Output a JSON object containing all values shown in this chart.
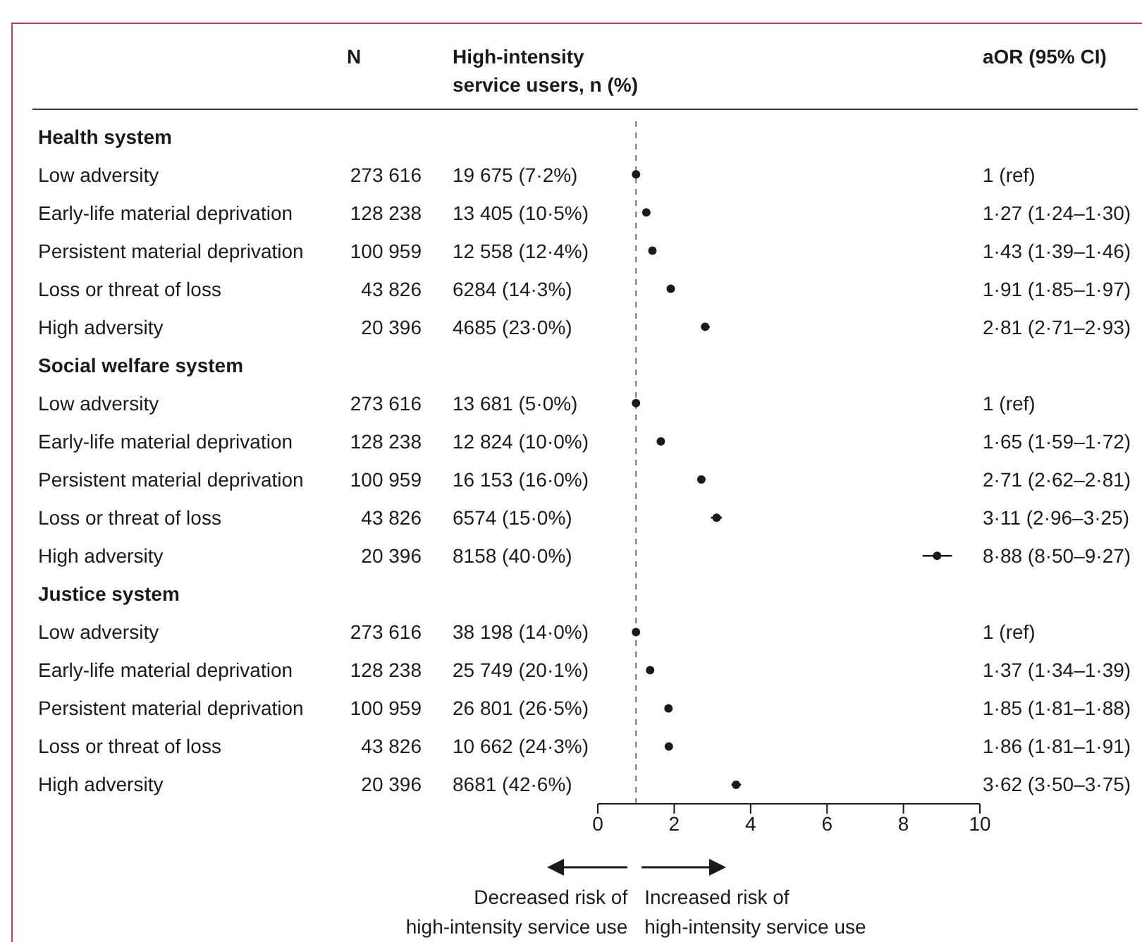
{
  "chart_data": [
    {
      "type": "other",
      "categories": [
        "Health system",
        "Low adversity",
        "Early-life material deprivation",
        "Persistent material deprivation",
        "Loss or threat of loss",
        "High adversity",
        "Social welfare system",
        "Low adversity",
        "Early-life material deprivation",
        "Persistent material deprivation",
        "Loss or threat of loss",
        "High adversity",
        "Justice system",
        "Low adversity",
        "Early-life material deprivation",
        "Persistent material deprivation",
        "Loss or threat of loss",
        "High adversity"
      ],
      "series": [
        {
          "name": "N",
          "values": [
            null,
            273616,
            128238,
            100959,
            43826,
            20396,
            null,
            273616,
            128238,
            100959,
            43826,
            20396,
            null,
            273616,
            128238,
            100959,
            43826,
            20396
          ],
          "value_labels": [
            null,
            "273 616",
            "128 238",
            "100 959",
            "43 826",
            "20 396",
            null,
            "273 616",
            "128 238",
            "100 959",
            "43 826",
            "20 396",
            null,
            "273 616",
            "128 238",
            "100 959",
            "43 826",
            "20 396"
          ]
        },
        {
          "name": "High-intensity service users, n (%)",
          "values": [
            null,
            19675,
            13405,
            12558,
            6284,
            4685,
            null,
            13681,
            12824,
            16153,
            6574,
            8158,
            null,
            38198,
            25749,
            26801,
            10662,
            8681
          ],
          "value_labels": [
            null,
            "19 675 (7·2%)",
            "13 405 (10·5%)",
            "12 558 (12·4%)",
            "6284 (14·3%)",
            "4685 (23·0%)",
            null,
            "13 681 (5·0%)",
            "12 824 (10·0%)",
            "16 153 (16·0%)",
            "6574 (15·0%)",
            "8158 (40·0%)",
            null,
            "38 198 (14·0%)",
            "25 749 (20·1%)",
            "26 801 (26·5%)",
            "10 662 (24·3%)",
            "8681 (42·6%)"
          ]
        }
      ]
    },
    {
      "type": "scatter",
      "orientation": "horizontal",
      "marker": "circle",
      "categories": [
        null,
        null,
        null,
        null,
        null,
        null,
        null,
        null,
        null,
        null,
        null,
        null,
        null,
        null,
        null,
        null,
        null,
        null
      ],
      "series": [
        {
          "color": "#1a1a1a",
          "values": [
            null,
            1,
            1.27,
            1.43,
            1.91,
            2.81,
            null,
            1,
            1.65,
            2.71,
            3.11,
            8.88,
            null,
            1,
            1.37,
            1.85,
            1.86,
            3.62
          ],
          "errors": [
            null,
            null,
            [
              1.24,
              1.3
            ],
            [
              1.39,
              1.46
            ],
            [
              1.85,
              1.97
            ],
            [
              2.71,
              2.93
            ],
            null,
            null,
            [
              1.59,
              1.72
            ],
            [
              2.62,
              2.81
            ],
            [
              2.96,
              3.25
            ],
            [
              8.5,
              9.27
            ],
            null,
            null,
            [
              1.34,
              1.39
            ],
            [
              1.81,
              1.88
            ],
            [
              1.81,
              1.91
            ],
            [
              3.5,
              3.75
            ]
          ]
        }
      ],
      "xlim": [
        0,
        10
      ],
      "xticks": [
        0,
        2,
        4,
        6,
        8,
        10
      ],
      "ref_lines": [
        {
          "axis": "x",
          "value": 1,
          "line_style": "dashed",
          "color": "#5b7b99"
        }
      ],
      "annotations": [
        "Decreased risk of high-intensity service use",
        "Increased risk of high-intensity service use"
      ]
    },
    {
      "type": "other",
      "title": "aOR (95% CI)",
      "annotations": [
        "1 (ref)",
        "1·27 (1·24–1·30)",
        "1·43 (1·39–1·46)",
        "1·91 (1·85–1·97)",
        "2·81 (2·71–2·93)",
        "1 (ref)",
        "1·65 (1·59–1·72)",
        "2·71 (2·62–2·81)",
        "3·11 (2·96–3·25)",
        "8·88 (8·50–9·27)",
        "1 (ref)",
        "1·37 (1·34–1·39)",
        "1·85 (1·81–1·88)",
        "1·86 (1·81–1·91)",
        "3·62 (3·50–3·75)"
      ]
    }
  ]
}
